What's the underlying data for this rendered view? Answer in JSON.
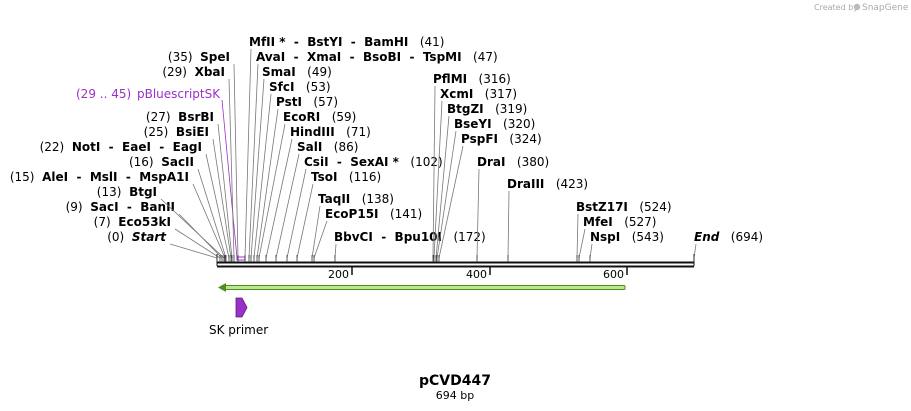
{
  "credit": {
    "text": "Created by",
    "brand": "SnapGene"
  },
  "title": "pCVD447",
  "length_label": "694 bp",
  "sequence_length_bp": 694,
  "axis": {
    "ticks": [
      "200",
      "400",
      "600"
    ]
  },
  "colors": {
    "backbone": "#111111",
    "arrow": "#7dc63b",
    "feature": "#9b30c8"
  },
  "primer": {
    "name": "SK primer"
  },
  "feature": {
    "range": "(29 .. 45)",
    "name": "pBluescriptSK"
  },
  "sites": [
    {
      "names": [
        "Start"
      ],
      "pos": "(0)",
      "italic": true
    },
    {
      "names": [
        "Eco53kI"
      ],
      "pos": "(7)"
    },
    {
      "names": [
        "SacI",
        "BanII"
      ],
      "pos": "(9)"
    },
    {
      "names": [
        "BtgI"
      ],
      "pos": "(13)"
    },
    {
      "names": [
        "AleI",
        "MslI",
        "MspA1I"
      ],
      "pos": "(15)"
    },
    {
      "names": [
        "SacII"
      ],
      "pos": "(16)"
    },
    {
      "names": [
        "NotI",
        "EaeI",
        "EagI"
      ],
      "pos": "(22)"
    },
    {
      "names": [
        "BsiEI"
      ],
      "pos": "(25)"
    },
    {
      "names": [
        "BsrBI"
      ],
      "pos": "(27)"
    },
    {
      "names": [
        "XbaI"
      ],
      "pos": "(29)"
    },
    {
      "names": [
        "SpeI"
      ],
      "pos": "(35)"
    },
    {
      "names": [
        "MfII *",
        "BstYI",
        "BamHI"
      ],
      "pos": "(41)"
    },
    {
      "names": [
        "AvaI",
        "XmaI",
        "BsoBI",
        "TspMI"
      ],
      "pos": "(47)"
    },
    {
      "names": [
        "SmaI"
      ],
      "pos": "(49)"
    },
    {
      "names": [
        "SfcI"
      ],
      "pos": "(53)"
    },
    {
      "names": [
        "PstI"
      ],
      "pos": "(57)"
    },
    {
      "names": [
        "EcoRI"
      ],
      "pos": "(59)"
    },
    {
      "names": [
        "HindIII"
      ],
      "pos": "(71)"
    },
    {
      "names": [
        "SalI"
      ],
      "pos": "(86)"
    },
    {
      "names": [
        "CsiI",
        "SexAI *"
      ],
      "pos": "(102)"
    },
    {
      "names": [
        "TsoI"
      ],
      "pos": "(116)"
    },
    {
      "names": [
        "TaqII"
      ],
      "pos": "(138)"
    },
    {
      "names": [
        "EcoP15I"
      ],
      "pos": "(141)"
    },
    {
      "names": [
        "BbvCI",
        "Bpu10I"
      ],
      "pos": "(172)"
    },
    {
      "names": [
        "PflMI"
      ],
      "pos": "(316)"
    },
    {
      "names": [
        "XcmI"
      ],
      "pos": "(317)"
    },
    {
      "names": [
        "BtgZI"
      ],
      "pos": "(319)"
    },
    {
      "names": [
        "BseYI"
      ],
      "pos": "(320)"
    },
    {
      "names": [
        "PspFI"
      ],
      "pos": "(324)"
    },
    {
      "names": [
        "DraI"
      ],
      "pos": "(380)"
    },
    {
      "names": [
        "DraIII"
      ],
      "pos": "(423)"
    },
    {
      "names": [
        "BstZ17I"
      ],
      "pos": "(524)"
    },
    {
      "names": [
        "MfeI"
      ],
      "pos": "(527)"
    },
    {
      "names": [
        "NspI"
      ],
      "pos": "(543)"
    },
    {
      "names": [
        "End"
      ],
      "pos": "(694)",
      "italic": true
    }
  ]
}
